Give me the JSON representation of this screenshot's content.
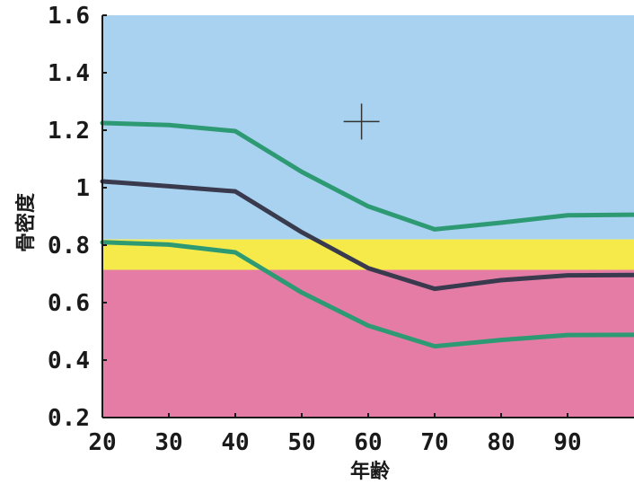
{
  "chart_data": {
    "type": "line",
    "xlabel": "年齢",
    "ylabel": "骨密度",
    "xlim": [
      20,
      100
    ],
    "ylim": [
      0.2,
      1.6
    ],
    "x_ticks": [
      20,
      30,
      40,
      50,
      60,
      70,
      80,
      90
    ],
    "y_ticks": [
      {
        "v": 0.2,
        "label": "0.2"
      },
      {
        "v": 0.4,
        "label": "0.4"
      },
      {
        "v": 0.6,
        "label": "0.6"
      },
      {
        "v": 0.8,
        "label": "0.8"
      },
      {
        "v": 1.0,
        "label": "1"
      },
      {
        "v": 1.2,
        "label": "1.2"
      },
      {
        "v": 1.4,
        "label": "1.4"
      },
      {
        "v": 1.6,
        "label": "1.6"
      }
    ],
    "bands": [
      {
        "from": 0.82,
        "to": 1.6,
        "color": "#a8d2f0"
      },
      {
        "from": 0.714,
        "to": 0.82,
        "color": "#f6ea4a"
      },
      {
        "from": 0.2,
        "to": 0.714,
        "color": "#e57ca6"
      }
    ],
    "x": [
      20,
      30,
      40,
      50,
      60,
      70,
      80,
      90,
      100
    ],
    "series": [
      {
        "color": "#2e9a74",
        "values": [
          1.225,
          1.218,
          1.197,
          1.055,
          0.935,
          0.855,
          0.878,
          0.904,
          0.906
        ]
      },
      {
        "color": "#3a3a4e",
        "values": [
          1.022,
          1.005,
          0.987,
          0.845,
          0.72,
          0.648,
          0.678,
          0.695,
          0.696
        ]
      },
      {
        "color": "#2e9a74",
        "values": [
          0.81,
          0.802,
          0.775,
          0.635,
          0.52,
          0.448,
          0.47,
          0.487,
          0.488
        ]
      }
    ],
    "marker": {
      "x": 59,
      "y": 1.23,
      "symbol": "+"
    }
  }
}
